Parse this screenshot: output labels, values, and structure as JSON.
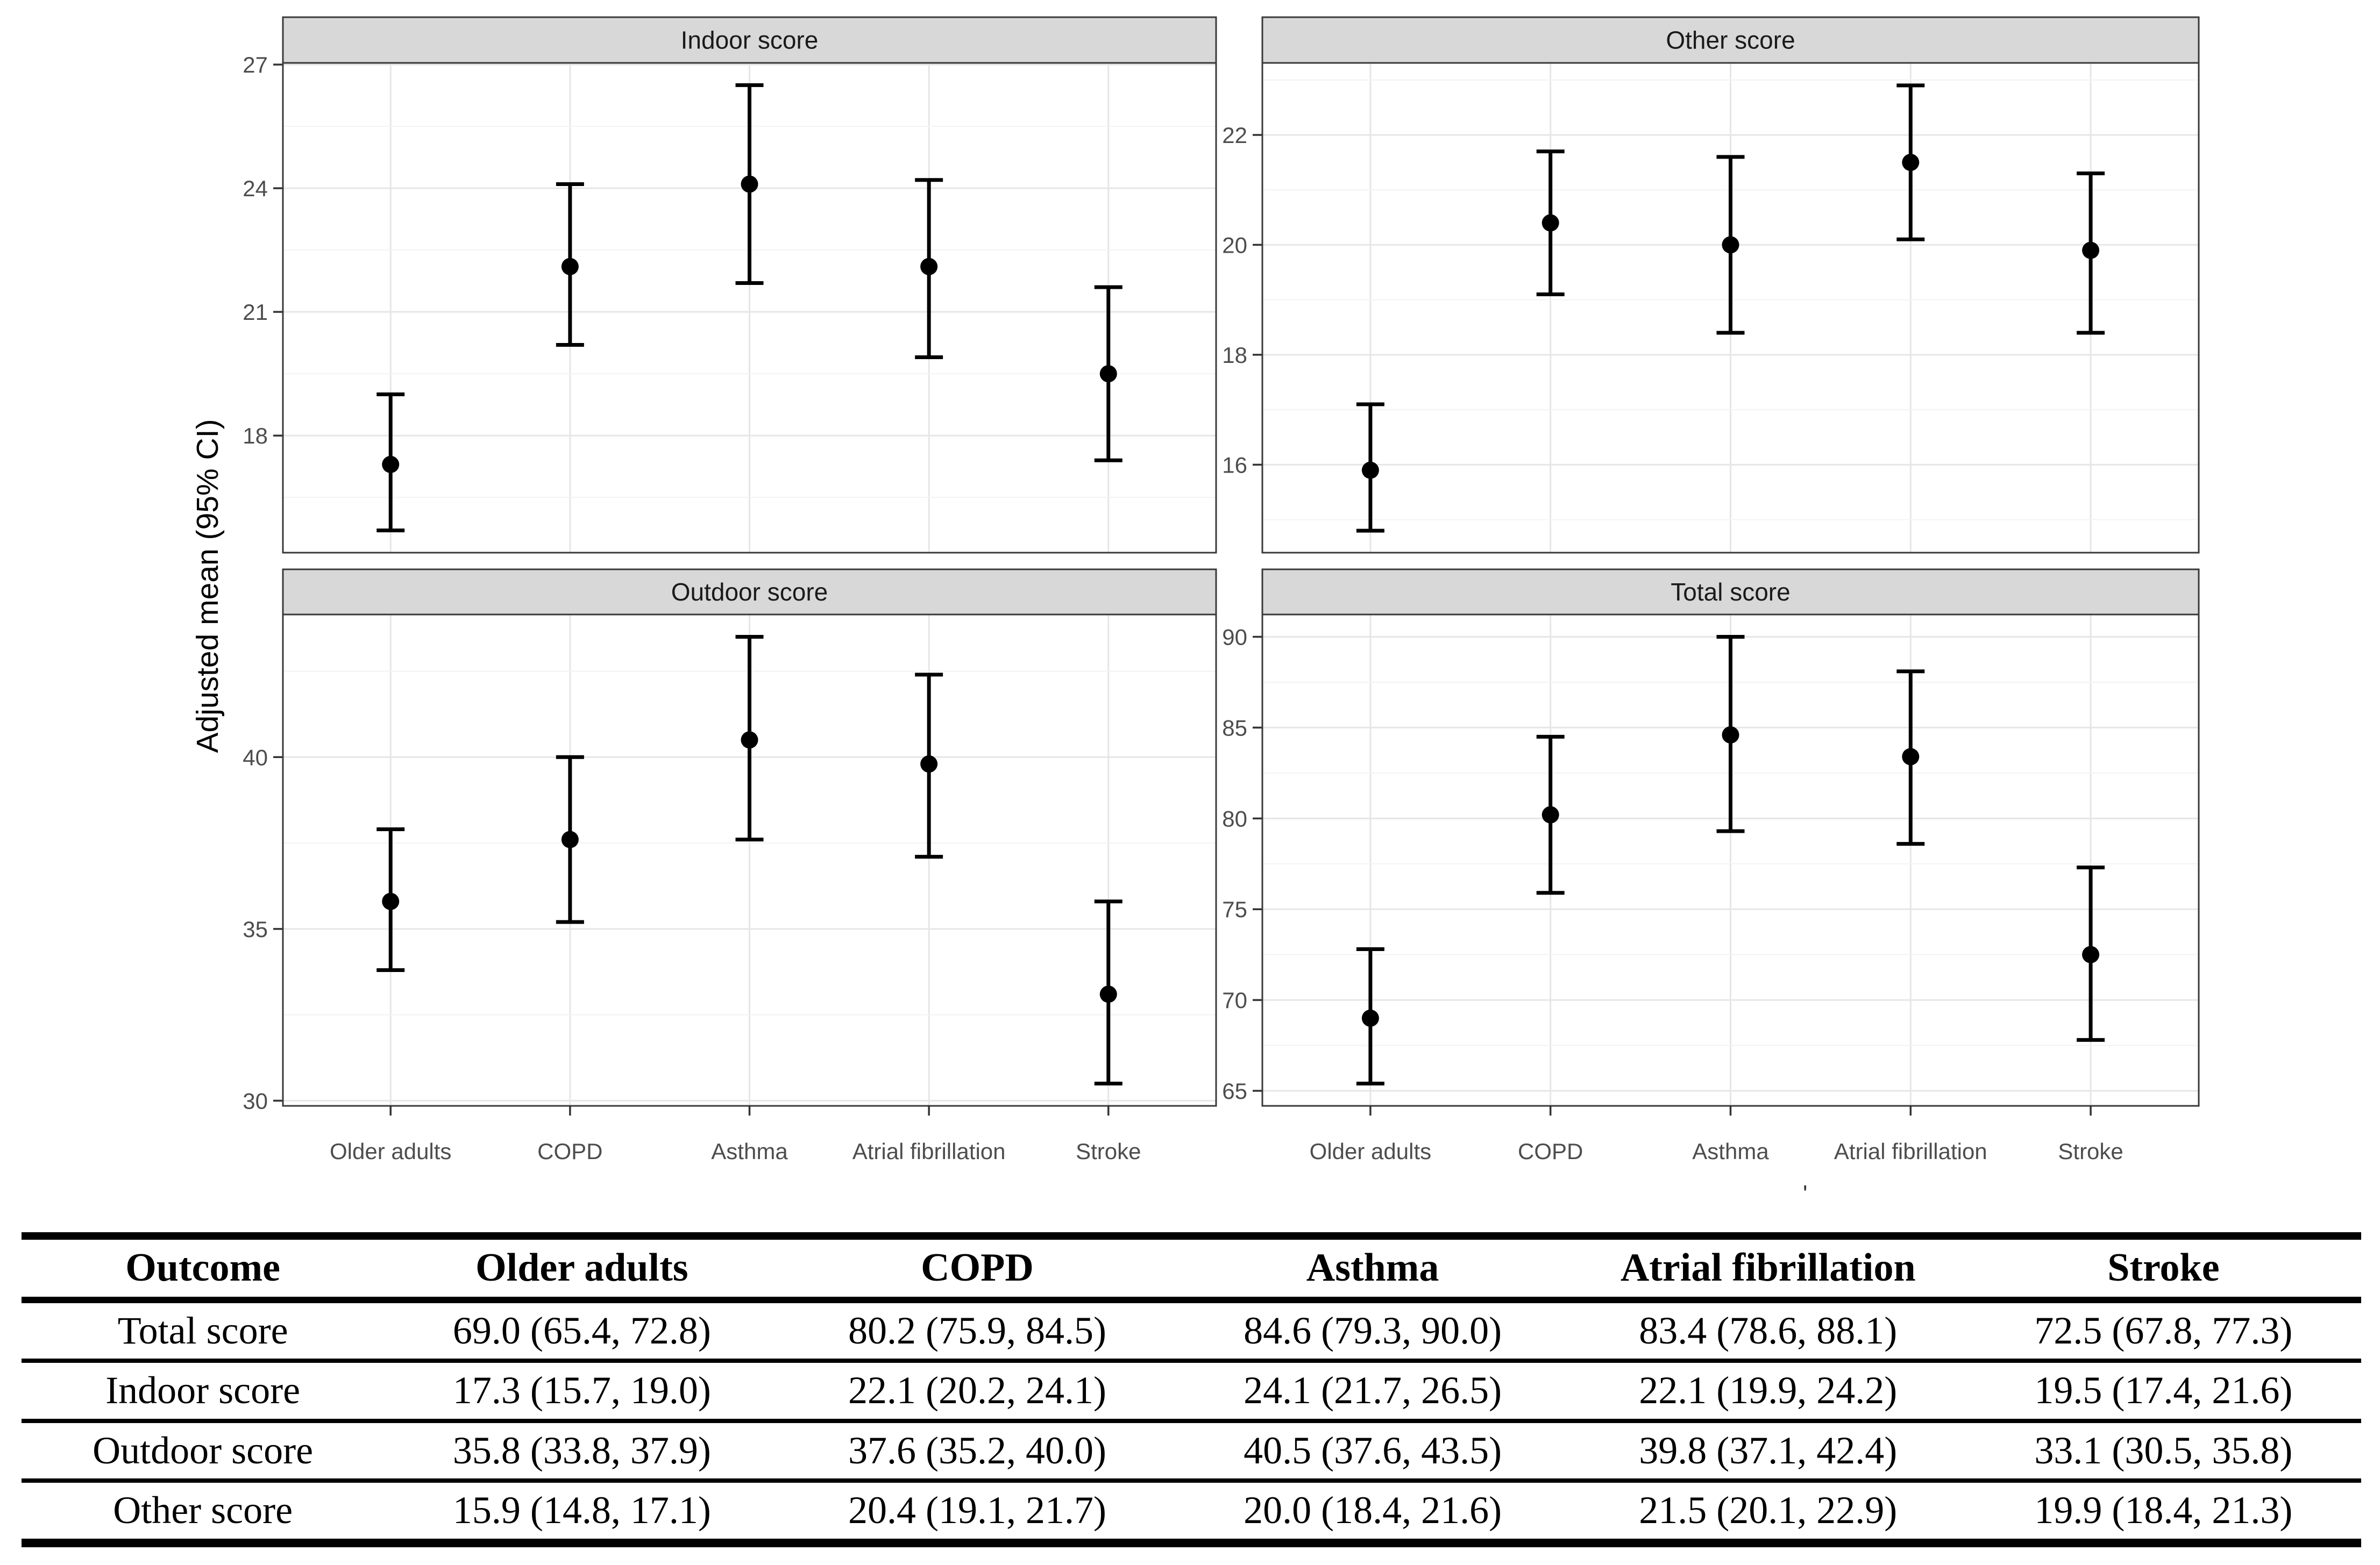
{
  "figure": {
    "y_axis_title": "Adjusted mean (95% CI)",
    "x_categories": [
      "Older adults",
      "COPD",
      "Asthma",
      "Atrial fibrillation",
      "Stroke"
    ],
    "colors": {
      "strip_fill": "#d8d8d8",
      "panel_border": "#3a3a3a",
      "grid_major": "#e6e6e6",
      "grid_minor": "#f3f3f3",
      "tick_mark": "#333333",
      "axis_text": "#4d4d4d",
      "strip_text": "#1a1a1a",
      "marker": "#000000"
    }
  },
  "chart_data": [
    {
      "type": "scatter",
      "title": "Indoor score",
      "position": "top-left",
      "categories": [
        "Older adults",
        "COPD",
        "Asthma",
        "Atrial fibrillation",
        "Stroke"
      ],
      "series": [
        {
          "name": "Adjusted mean (95% CI)",
          "means": [
            17.3,
            22.1,
            24.1,
            22.1,
            19.5
          ],
          "ci_low": [
            15.7,
            20.2,
            21.7,
            19.9,
            17.4
          ],
          "ci_high": [
            19.0,
            24.1,
            26.5,
            24.2,
            21.6
          ]
        }
      ],
      "ylabel": "Adjusted mean (95% CI)",
      "xlabel": "",
      "yticks": [
        18,
        21,
        24,
        27
      ],
      "ylim": [
        15.16,
        27.04
      ],
      "grid": true,
      "legend": false
    },
    {
      "type": "scatter",
      "title": "Other score",
      "position": "top-right",
      "categories": [
        "Older adults",
        "COPD",
        "Asthma",
        "Atrial fibrillation",
        "Stroke"
      ],
      "series": [
        {
          "name": "Adjusted mean (95% CI)",
          "means": [
            15.9,
            20.4,
            20.0,
            21.5,
            19.9
          ],
          "ci_low": [
            14.8,
            19.1,
            18.4,
            20.1,
            18.4
          ],
          "ci_high": [
            17.1,
            21.7,
            21.6,
            22.9,
            21.3
          ]
        }
      ],
      "ylabel": "Adjusted mean (95% CI)",
      "xlabel": "",
      "yticks": [
        16,
        18,
        20,
        22
      ],
      "ylim": [
        14.4,
        23.31
      ],
      "grid": true,
      "legend": false
    },
    {
      "type": "scatter",
      "title": "Outdoor score",
      "position": "bottom-left",
      "categories": [
        "Older adults",
        "COPD",
        "Asthma",
        "Atrial fibrillation",
        "Stroke"
      ],
      "series": [
        {
          "name": "Adjusted mean (95% CI)",
          "means": [
            35.8,
            37.6,
            40.5,
            39.8,
            33.1
          ],
          "ci_low": [
            33.8,
            35.2,
            37.6,
            37.1,
            30.5
          ],
          "ci_high": [
            37.9,
            40.0,
            43.5,
            42.4,
            35.8
          ]
        }
      ],
      "ylabel": "Adjusted mean (95% CI)",
      "xlabel": "",
      "yticks": [
        30,
        35,
        40
      ],
      "ylim": [
        29.85,
        44.15
      ],
      "grid": true,
      "legend": false
    },
    {
      "type": "scatter",
      "title": "Total score",
      "position": "bottom-right",
      "categories": [
        "Older adults",
        "COPD",
        "Asthma",
        "Atrial fibrillation",
        "Stroke"
      ],
      "series": [
        {
          "name": "Adjusted mean (95% CI)",
          "means": [
            69.0,
            80.2,
            84.6,
            83.4,
            72.5
          ],
          "ci_low": [
            65.4,
            75.9,
            79.3,
            78.6,
            67.8
          ],
          "ci_high": [
            72.8,
            84.5,
            90.0,
            88.1,
            77.3
          ]
        }
      ],
      "ylabel": "Adjusted mean (95% CI)",
      "xlabel": "",
      "yticks": [
        65,
        70,
        75,
        80,
        85,
        90
      ],
      "ylim": [
        64.17,
        91.23
      ],
      "grid": true,
      "legend": false
    }
  ],
  "table": {
    "headers": [
      "Outcome",
      "Older adults",
      "COPD",
      "Asthma",
      "Atrial fibrillation",
      "Stroke"
    ],
    "rows": [
      {
        "outcome": "Total score",
        "values": [
          "69.0 (65.4, 72.8)",
          "80.2 (75.9, 84.5)",
          "84.6 (79.3, 90.0)",
          "83.4 (78.6, 88.1)",
          "72.5 (67.8, 77.3)"
        ]
      },
      {
        "outcome": "Indoor score",
        "values": [
          "17.3 (15.7, 19.0)",
          "22.1 (20.2, 24.1)",
          "24.1 (21.7, 26.5)",
          "22.1 (19.9, 24.2)",
          "19.5 (17.4, 21.6)"
        ]
      },
      {
        "outcome": "Outdoor score",
        "values": [
          "35.8 (33.8, 37.9)",
          "37.6 (35.2, 40.0)",
          "40.5 (37.6, 43.5)",
          "39.8 (37.1, 42.4)",
          "33.1 (30.5, 35.8)"
        ]
      },
      {
        "outcome": "Other score",
        "values": [
          "15.9 (14.8, 17.1)",
          "20.4 (19.1, 21.7)",
          "20.0 (18.4, 21.6)",
          "21.5 (20.1, 22.9)",
          "19.9 (18.4, 21.3)"
        ]
      }
    ]
  },
  "annotations": {
    "stray_mark": "'"
  }
}
